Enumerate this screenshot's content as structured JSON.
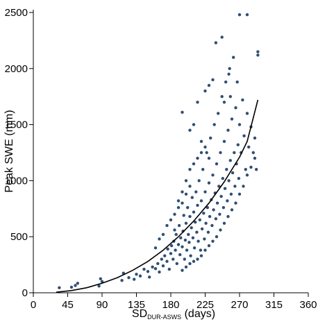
{
  "chart_data": {
    "type": "scatter",
    "title": "",
    "xlabel": {
      "main": "SD",
      "subscript": "DUR-ASWS",
      "suffix": " (days)"
    },
    "ylabel": "Peak SWE (mm)",
    "xlim": [
      0,
      360
    ],
    "ylim": [
      0,
      2500
    ],
    "x_ticks": [
      0,
      45,
      90,
      135,
      180,
      225,
      270,
      315,
      360
    ],
    "y_ticks": [
      0,
      500,
      1000,
      1500,
      2000,
      2500
    ],
    "grid": false,
    "legend": "none",
    "colors": {
      "points": "#2f4f73",
      "fit_line": "#000000"
    },
    "series": [
      {
        "kind": "points",
        "points": [
          [
            34,
            45
          ],
          [
            50,
            50
          ],
          [
            55,
            65
          ],
          [
            58,
            85
          ],
          [
            86,
            60
          ],
          [
            88,
            125
          ],
          [
            90,
            100
          ],
          [
            116,
            110
          ],
          [
            118,
            175
          ],
          [
            125,
            135
          ],
          [
            132,
            120
          ],
          [
            135,
            165
          ],
          [
            140,
            150
          ],
          [
            145,
            210
          ],
          [
            150,
            190
          ],
          [
            152,
            140
          ],
          [
            156,
            230
          ],
          [
            160,
            215
          ],
          [
            163,
            260
          ],
          [
            165,
            185
          ],
          [
            168,
            300
          ],
          [
            170,
            240
          ],
          [
            172,
            330
          ],
          [
            175,
            280
          ],
          [
            176,
            390
          ],
          [
            178,
            210
          ],
          [
            180,
            350
          ],
          [
            181,
            420
          ],
          [
            183,
            300
          ],
          [
            184,
            460
          ],
          [
            186,
            380
          ],
          [
            187,
            520
          ],
          [
            188,
            260
          ],
          [
            190,
            430
          ],
          [
            191,
            600
          ],
          [
            192,
            340
          ],
          [
            193,
            490
          ],
          [
            195,
            410
          ],
          [
            196,
            550
          ],
          [
            197,
            690
          ],
          [
            198,
            300
          ],
          [
            199,
            470
          ],
          [
            200,
            620
          ],
          [
            201,
            380
          ],
          [
            202,
            760
          ],
          [
            203,
            520
          ],
          [
            204,
            450
          ],
          [
            205,
            680
          ],
          [
            206,
            330
          ],
          [
            207,
            580
          ],
          [
            208,
            850
          ],
          [
            209,
            490
          ],
          [
            210,
            720
          ],
          [
            211,
            400
          ],
          [
            212,
            630
          ],
          [
            213,
            900
          ],
          [
            214,
            540
          ],
          [
            215,
            780
          ],
          [
            216,
            460
          ],
          [
            217,
            1000
          ],
          [
            218,
            650
          ],
          [
            219,
            380
          ],
          [
            220,
            820
          ],
          [
            221,
            570
          ],
          [
            222,
            1100
          ],
          [
            223,
            710
          ],
          [
            224,
            480
          ],
          [
            225,
            900
          ],
          [
            226,
            620
          ],
          [
            227,
            1250
          ],
          [
            228,
            760
          ],
          [
            229,
            540
          ],
          [
            230,
            980
          ],
          [
            231,
            680
          ],
          [
            232,
            1380
          ],
          [
            233,
            830
          ],
          [
            234,
            600
          ],
          [
            235,
            1050
          ],
          [
            236,
            740
          ],
          [
            237,
            1500
          ],
          [
            238,
            890
          ],
          [
            239,
            660
          ],
          [
            240,
            1150
          ],
          [
            241,
            800
          ],
          [
            242,
            1600
          ],
          [
            243,
            950
          ],
          [
            244,
            700
          ],
          [
            245,
            1250
          ],
          [
            246,
            860
          ],
          [
            247,
            1750
          ],
          [
            248,
            1020
          ],
          [
            249,
            760
          ],
          [
            250,
            1350
          ],
          [
            251,
            930
          ],
          [
            252,
            1880
          ],
          [
            253,
            1100
          ],
          [
            254,
            820
          ],
          [
            255,
            1450
          ],
          [
            256,
            1000
          ],
          [
            257,
            2000
          ],
          [
            258,
            1180
          ],
          [
            259,
            880
          ],
          [
            260,
            1550
          ],
          [
            261,
            1070
          ],
          [
            262,
            2100
          ],
          [
            263,
            1250
          ],
          [
            264,
            950
          ],
          [
            265,
            1650
          ],
          [
            266,
            1150
          ],
          [
            267,
            1880
          ],
          [
            268,
            1320
          ],
          [
            269,
            1020
          ],
          [
            270,
            1500
          ],
          [
            272,
            1250
          ],
          [
            274,
            1720
          ],
          [
            276,
            1400
          ],
          [
            278,
            1100
          ],
          [
            280,
            1600
          ],
          [
            282,
            1300
          ],
          [
            285,
            1480
          ],
          [
            288,
            1250
          ],
          [
            290,
            1380
          ],
          [
            292,
            1100
          ],
          [
            294,
            2150
          ],
          [
            294,
            2120
          ],
          [
            270,
            2480
          ],
          [
            280,
            2480
          ],
          [
            239,
            2230
          ],
          [
            247,
            2280
          ],
          [
            256,
            1950
          ],
          [
            195,
            1610
          ],
          [
            205,
            1450
          ],
          [
            210,
            1500
          ],
          [
            215,
            1700
          ],
          [
            220,
            1350
          ],
          [
            225,
            1800
          ],
          [
            230,
            1850
          ],
          [
            235,
            1900
          ],
          [
            250,
            1700
          ],
          [
            258,
            1750
          ],
          [
            185,
            700
          ],
          [
            190,
            820
          ],
          [
            195,
            900
          ],
          [
            200,
            1000
          ],
          [
            205,
            1100
          ],
          [
            210,
            1150
          ],
          [
            215,
            1200
          ],
          [
            220,
            1250
          ],
          [
            225,
            1300
          ],
          [
            230,
            1200
          ],
          [
            160,
            400
          ],
          [
            165,
            480
          ],
          [
            170,
            520
          ],
          [
            175,
            600
          ],
          [
            180,
            650
          ],
          [
            185,
            560
          ],
          [
            190,
            760
          ],
          [
            195,
            800
          ],
          [
            200,
            880
          ],
          [
            205,
            950
          ],
          [
            195,
            200
          ],
          [
            200,
            230
          ],
          [
            205,
            260
          ],
          [
            210,
            280
          ],
          [
            215,
            300
          ],
          [
            220,
            330
          ],
          [
            225,
            380
          ],
          [
            230,
            420
          ],
          [
            235,
            460
          ],
          [
            240,
            500
          ],
          [
            245,
            560
          ],
          [
            250,
            620
          ],
          [
            255,
            680
          ],
          [
            260,
            740
          ],
          [
            265,
            800
          ],
          [
            270,
            880
          ],
          [
            275,
            950
          ],
          [
            280,
            1050
          ],
          [
            285,
            1120
          ],
          [
            290,
            1200
          ]
        ]
      },
      {
        "kind": "fit",
        "curve": [
          [
            30,
            5
          ],
          [
            50,
            20
          ],
          [
            70,
            45
          ],
          [
            90,
            85
          ],
          [
            110,
            135
          ],
          [
            130,
            200
          ],
          [
            150,
            280
          ],
          [
            170,
            380
          ],
          [
            190,
            500
          ],
          [
            210,
            640
          ],
          [
            230,
            800
          ],
          [
            250,
            990
          ],
          [
            270,
            1210
          ],
          [
            280,
            1350
          ],
          [
            294,
            1720
          ]
        ]
      }
    ]
  }
}
